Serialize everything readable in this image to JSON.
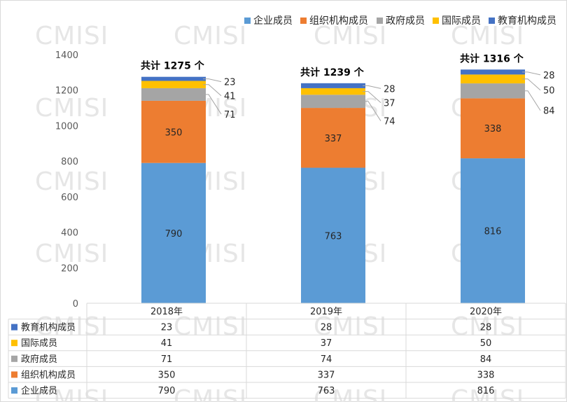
{
  "watermark": "CMISI",
  "chart_data": {
    "type": "bar",
    "stacked": true,
    "categories": [
      "2018年",
      "2019年",
      "2020年"
    ],
    "series": [
      {
        "name": "企业成员",
        "color": "#5b9bd5",
        "values": [
          790,
          763,
          816
        ]
      },
      {
        "name": "组织机构成员",
        "color": "#ed7d31",
        "values": [
          350,
          337,
          338
        ]
      },
      {
        "name": "政府成员",
        "color": "#a5a5a5",
        "values": [
          71,
          74,
          84
        ]
      },
      {
        "name": "国际成员",
        "color": "#ffc000",
        "values": [
          41,
          37,
          50
        ]
      },
      {
        "name": "教育机构成员",
        "color": "#4472c4",
        "values": [
          23,
          28,
          28
        ]
      }
    ],
    "totals": [
      "共计 1275 个",
      "共计 1239 个",
      "共计 1316 个"
    ],
    "ylim": [
      0,
      1400
    ],
    "yticks": [
      0,
      200,
      400,
      600,
      800,
      1000,
      1200,
      1400
    ],
    "legend_position": "top-right",
    "data_table": true,
    "grid": false
  }
}
